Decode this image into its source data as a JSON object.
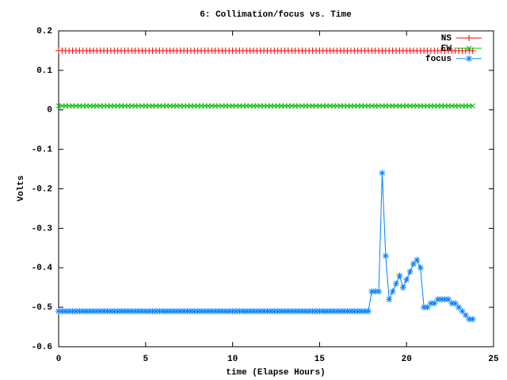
{
  "chart_data": {
    "type": "line",
    "title": "6: Collimation/focus vs. Time",
    "xlabel": "time (Elapse Hours)",
    "ylabel": "Volts",
    "xlim": [
      0,
      25
    ],
    "xticks": [
      0,
      5,
      10,
      15,
      20,
      25
    ],
    "ylim": [
      -0.6,
      0.2
    ],
    "yticks": [
      0.2,
      0.1,
      0,
      -0.1,
      -0.2,
      -0.3,
      -0.4,
      -0.5,
      -0.6
    ],
    "legend": "right top",
    "x": [
      0,
      0.2,
      0.4,
      0.6,
      0.8,
      1,
      1.2,
      1.4,
      1.6,
      1.8,
      2,
      2.2,
      2.4,
      2.6,
      2.8,
      3,
      3.2,
      3.4,
      3.6,
      3.8,
      4,
      4.2,
      4.4,
      4.6,
      4.8,
      5,
      5.2,
      5.4,
      5.6,
      5.8,
      6,
      6.2,
      6.4,
      6.6,
      6.8,
      7,
      7.2,
      7.4,
      7.6,
      7.8,
      8,
      8.2,
      8.4,
      8.6,
      8.8,
      9,
      9.2,
      9.4,
      9.6,
      9.8,
      10,
      10.2,
      10.4,
      10.6,
      10.8,
      11,
      11.2,
      11.4,
      11.6,
      11.8,
      12,
      12.2,
      12.4,
      12.6,
      12.8,
      13,
      13.2,
      13.4,
      13.6,
      13.8,
      14,
      14.2,
      14.4,
      14.6,
      14.8,
      15,
      15.2,
      15.4,
      15.6,
      15.8,
      16,
      16.2,
      16.4,
      16.6,
      16.8,
      17,
      17.2,
      17.4,
      17.6,
      17.8,
      18,
      18.2,
      18.4,
      18.6,
      18.8,
      19,
      19.2,
      19.4,
      19.6,
      19.8,
      20,
      20.2,
      20.4,
      20.6,
      20.8,
      21,
      21.2,
      21.4,
      21.6,
      21.8,
      22,
      22.2,
      22.4,
      22.6,
      22.8,
      23,
      23.2,
      23.4,
      23.6,
      23.8
    ],
    "series": [
      {
        "name": "NS",
        "color": "#ff0000",
        "marker": "plus",
        "values": [
          0.15,
          0.15,
          0.15,
          0.15,
          0.15,
          0.15,
          0.15,
          0.15,
          0.15,
          0.15,
          0.15,
          0.15,
          0.15,
          0.15,
          0.15,
          0.15,
          0.15,
          0.15,
          0.15,
          0.15,
          0.15,
          0.15,
          0.15,
          0.15,
          0.15,
          0.15,
          0.15,
          0.15,
          0.15,
          0.15,
          0.15,
          0.15,
          0.15,
          0.15,
          0.15,
          0.15,
          0.15,
          0.15,
          0.15,
          0.15,
          0.15,
          0.15,
          0.15,
          0.15,
          0.15,
          0.15,
          0.15,
          0.15,
          0.15,
          0.15,
          0.15,
          0.15,
          0.15,
          0.15,
          0.15,
          0.15,
          0.15,
          0.15,
          0.15,
          0.15,
          0.15,
          0.15,
          0.15,
          0.15,
          0.15,
          0.15,
          0.15,
          0.15,
          0.15,
          0.15,
          0.15,
          0.15,
          0.15,
          0.15,
          0.15,
          0.15,
          0.15,
          0.15,
          0.15,
          0.15,
          0.15,
          0.15,
          0.15,
          0.15,
          0.15,
          0.15,
          0.15,
          0.15,
          0.15,
          0.15,
          0.15,
          0.15,
          0.15,
          0.15,
          0.15,
          0.15,
          0.15,
          0.15,
          0.15,
          0.15,
          0.15,
          0.15,
          0.15,
          0.15,
          0.15,
          0.15,
          0.15,
          0.15,
          0.15,
          0.15,
          0.15,
          0.15,
          0.15,
          0.15,
          0.15,
          0.15,
          0.15,
          0.15,
          0.15,
          0.15
        ]
      },
      {
        "name": "EW",
        "color": "#00c000",
        "marker": "cross",
        "values": [
          0.01,
          0.01,
          0.01,
          0.01,
          0.01,
          0.01,
          0.01,
          0.01,
          0.01,
          0.01,
          0.01,
          0.01,
          0.01,
          0.01,
          0.01,
          0.01,
          0.01,
          0.01,
          0.01,
          0.01,
          0.01,
          0.01,
          0.01,
          0.01,
          0.01,
          0.01,
          0.01,
          0.01,
          0.01,
          0.01,
          0.01,
          0.01,
          0.01,
          0.01,
          0.01,
          0.01,
          0.01,
          0.01,
          0.01,
          0.01,
          0.01,
          0.01,
          0.01,
          0.01,
          0.01,
          0.01,
          0.01,
          0.01,
          0.01,
          0.01,
          0.01,
          0.01,
          0.01,
          0.01,
          0.01,
          0.01,
          0.01,
          0.01,
          0.01,
          0.01,
          0.01,
          0.01,
          0.01,
          0.01,
          0.01,
          0.01,
          0.01,
          0.01,
          0.01,
          0.01,
          0.01,
          0.01,
          0.01,
          0.01,
          0.01,
          0.01,
          0.01,
          0.01,
          0.01,
          0.01,
          0.01,
          0.01,
          0.01,
          0.01,
          0.01,
          0.01,
          0.01,
          0.01,
          0.01,
          0.01,
          0.01,
          0.01,
          0.01,
          0.01,
          0.01,
          0.01,
          0.01,
          0.01,
          0.01,
          0.01,
          0.01,
          0.01,
          0.01,
          0.01,
          0.01,
          0.01,
          0.01,
          0.01,
          0.01,
          0.01,
          0.01,
          0.01,
          0.01,
          0.01,
          0.01,
          0.01,
          0.01,
          0.01,
          0.01,
          0.01
        ]
      },
      {
        "name": "focus",
        "color": "#0080ff",
        "marker": "star",
        "values": [
          -0.51,
          -0.51,
          -0.51,
          -0.51,
          -0.51,
          -0.51,
          -0.51,
          -0.51,
          -0.51,
          -0.51,
          -0.51,
          -0.51,
          -0.51,
          -0.51,
          -0.51,
          -0.51,
          -0.51,
          -0.51,
          -0.51,
          -0.51,
          -0.51,
          -0.51,
          -0.51,
          -0.51,
          -0.51,
          -0.51,
          -0.51,
          -0.51,
          -0.51,
          -0.51,
          -0.51,
          -0.51,
          -0.51,
          -0.51,
          -0.51,
          -0.51,
          -0.51,
          -0.51,
          -0.51,
          -0.51,
          -0.51,
          -0.51,
          -0.51,
          -0.51,
          -0.51,
          -0.51,
          -0.51,
          -0.51,
          -0.51,
          -0.51,
          -0.51,
          -0.51,
          -0.51,
          -0.51,
          -0.51,
          -0.51,
          -0.51,
          -0.51,
          -0.51,
          -0.51,
          -0.51,
          -0.51,
          -0.51,
          -0.51,
          -0.51,
          -0.51,
          -0.51,
          -0.51,
          -0.51,
          -0.51,
          -0.51,
          -0.51,
          -0.51,
          -0.51,
          -0.51,
          -0.51,
          -0.51,
          -0.51,
          -0.51,
          -0.51,
          -0.51,
          -0.51,
          -0.51,
          -0.51,
          -0.51,
          -0.51,
          -0.51,
          -0.51,
          -0.51,
          -0.51,
          -0.46,
          -0.46,
          -0.46,
          -0.16,
          -0.37,
          -0.48,
          -0.46,
          -0.44,
          -0.42,
          -0.45,
          -0.43,
          -0.41,
          -0.39,
          -0.38,
          -0.4,
          -0.5,
          -0.5,
          -0.49,
          -0.49,
          -0.48,
          -0.48,
          -0.48,
          -0.48,
          -0.49,
          -0.49,
          -0.5,
          -0.51,
          -0.52,
          -0.53,
          -0.53
        ]
      }
    ]
  }
}
